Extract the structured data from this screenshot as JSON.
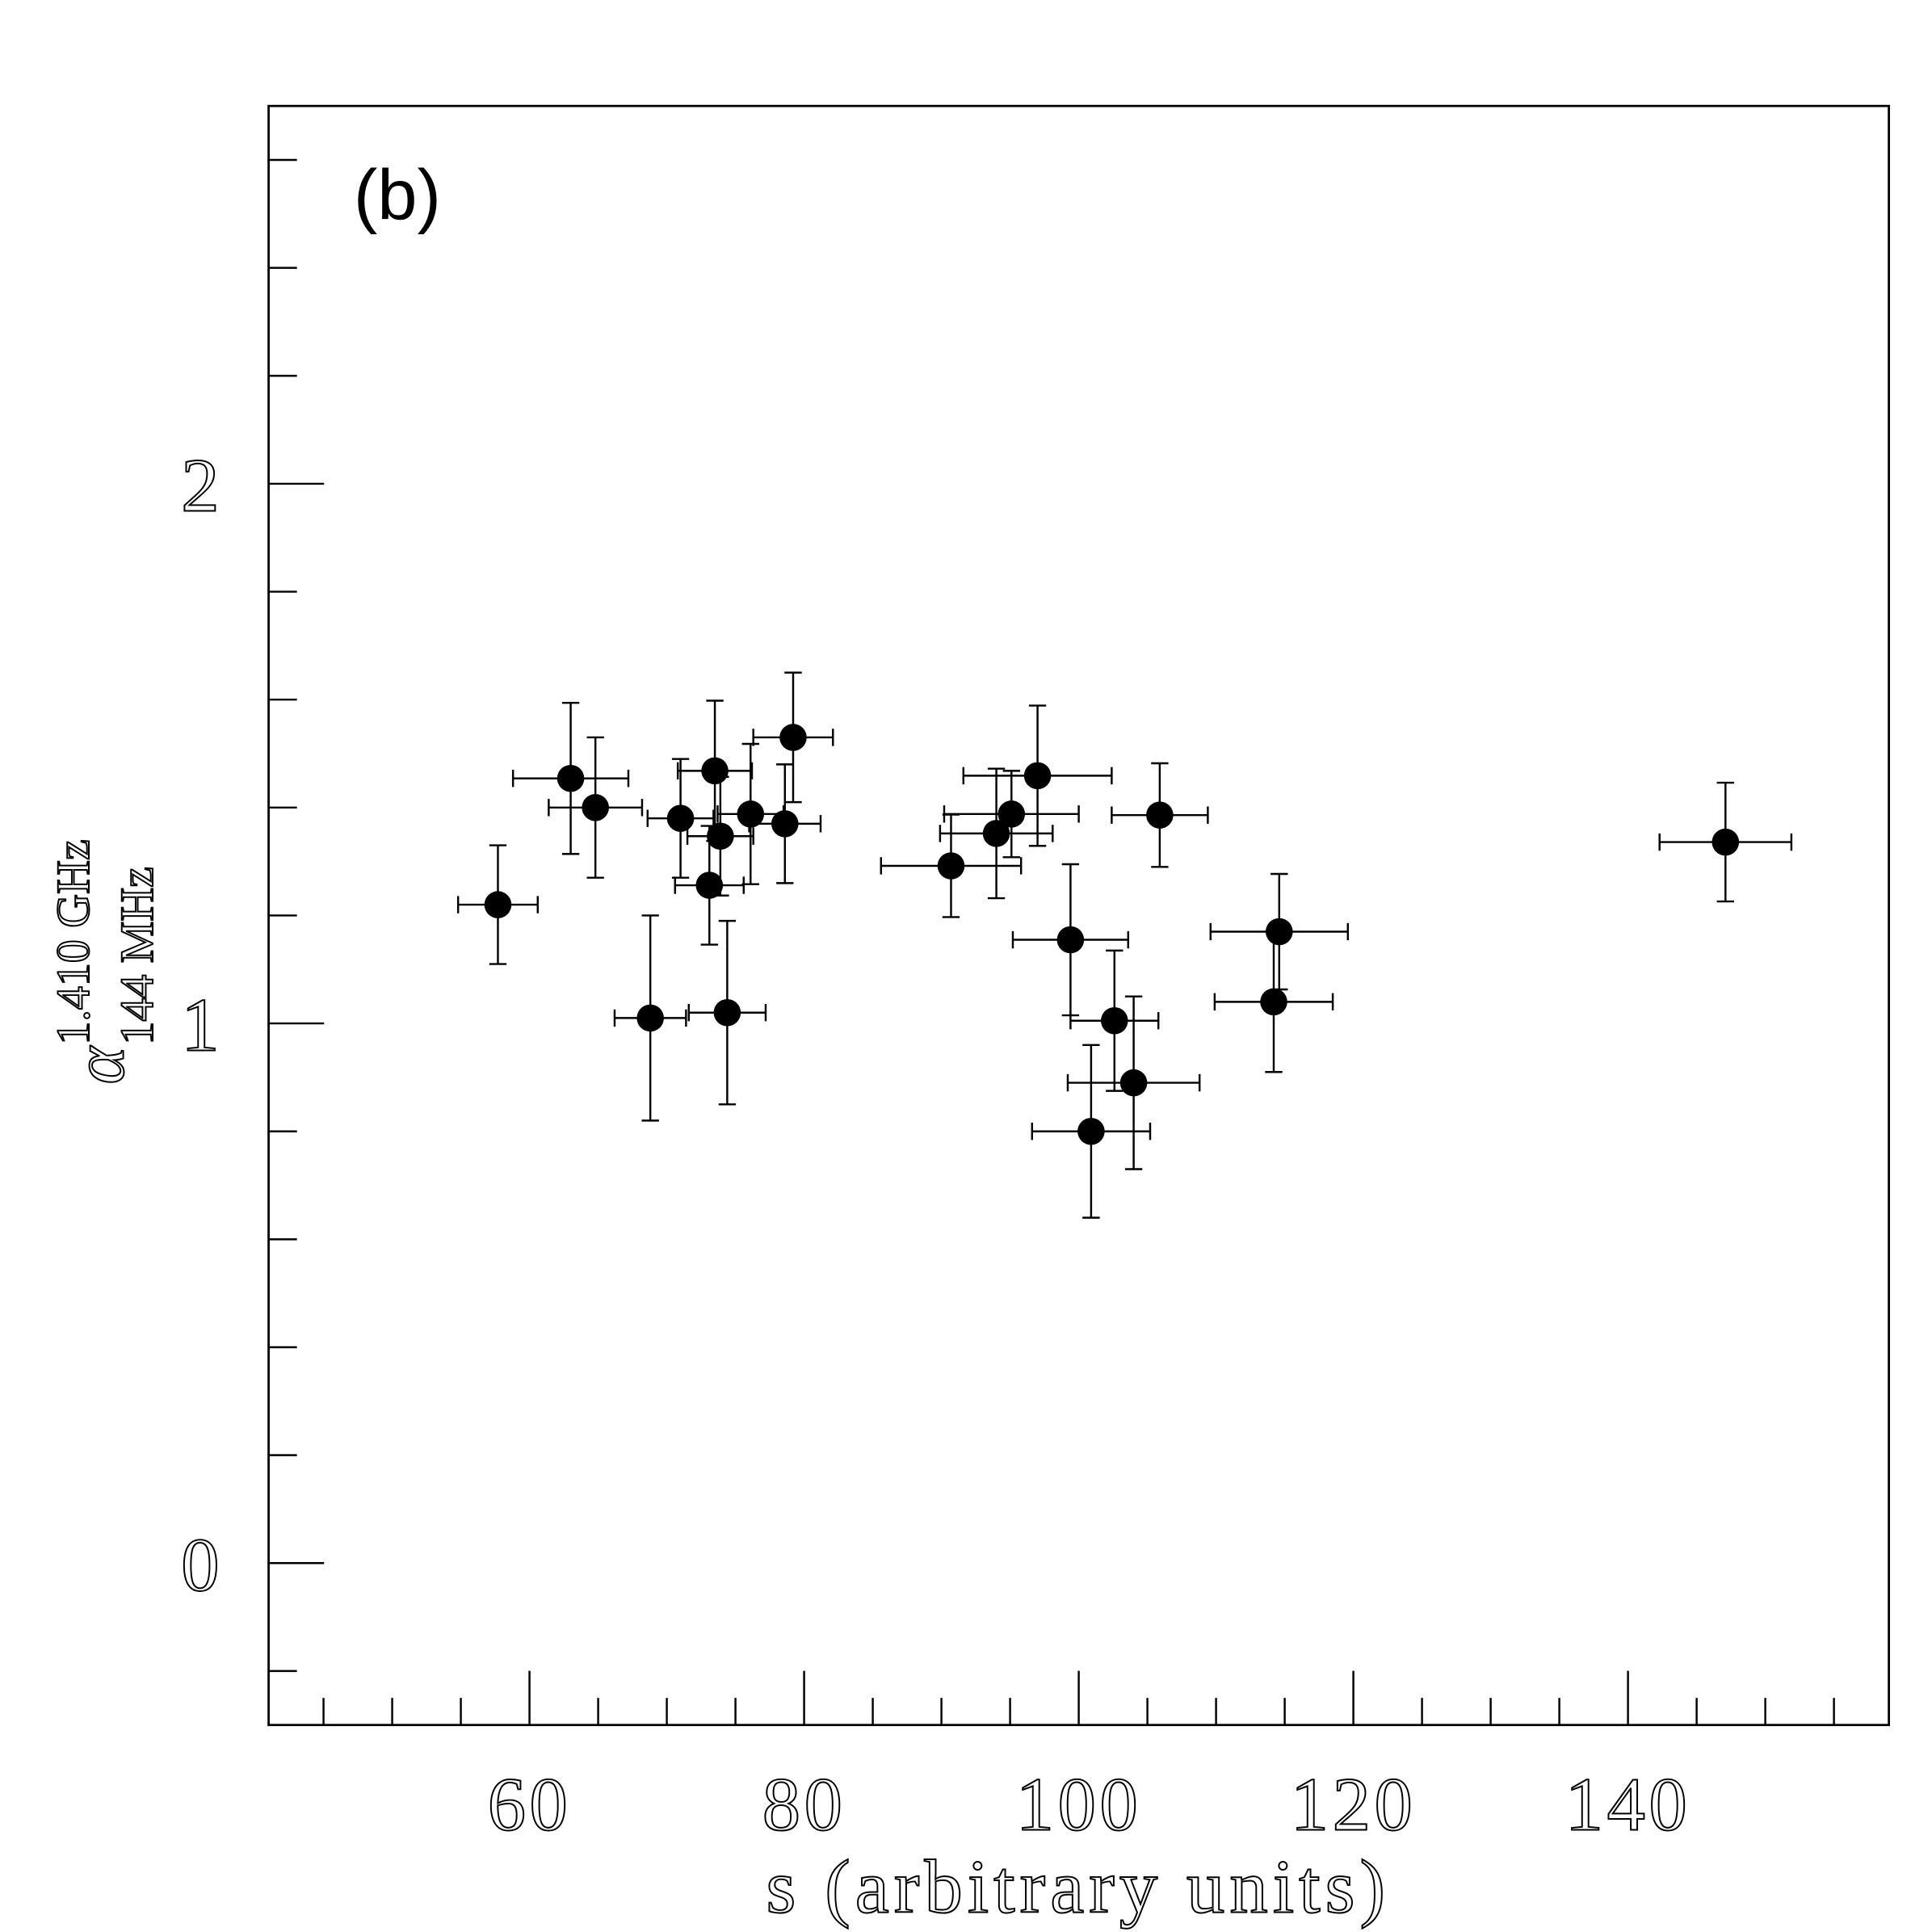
{
  "chart_data": {
    "type": "scatter",
    "annotation": "(b)",
    "xlabel": "s (arbitrary units)",
    "ylabel": {
      "symbol": "α",
      "superscript": "1.410 GHz",
      "subscript": "144 MHz"
    },
    "color": "#000000",
    "xlim": [
      41,
      159
    ],
    "ylim": [
      -0.3,
      2.7
    ],
    "xticks": [
      60,
      80,
      100,
      120,
      140
    ],
    "yticks": [
      0,
      1,
      2
    ],
    "xminorticks": [
      45,
      50,
      55,
      65,
      70,
      75,
      85,
      90,
      95,
      105,
      110,
      115,
      125,
      130,
      135,
      145,
      150,
      155
    ],
    "yminorticks": [
      -0.2,
      0.2,
      0.4,
      0.6,
      0.8,
      1.2,
      1.4,
      1.6,
      1.8,
      2.2,
      2.4,
      2.6
    ],
    "x": [
      57.7,
      63.0,
      64.8,
      68.8,
      71.0,
      73.5,
      73.1,
      73.9,
      74.4,
      76.1,
      78.6,
      79.2,
      90.7,
      94.0,
      95.1,
      97.0,
      105.9,
      99.4,
      102.6,
      104.0,
      100.9,
      114.6,
      114.2,
      147.1
    ],
    "values": [
      1.22,
      1.454,
      1.4,
      1.01,
      1.38,
      1.468,
      1.256,
      1.347,
      1.02,
      1.388,
      1.37,
      1.53,
      1.292,
      1.352,
      1.388,
      1.459,
      1.386,
      1.155,
      1.005,
      0.89,
      0.8,
      1.17,
      1.04,
      1.336
    ],
    "xerr": [
      2.9,
      4.2,
      3.4,
      2.6,
      2.4,
      2.7,
      2.5,
      2.4,
      2.8,
      2.4,
      2.6,
      2.9,
      5.1,
      4.1,
      4.9,
      5.4,
      3.5,
      4.2,
      3.2,
      4.8,
      4.3,
      5.0,
      4.3,
      4.8
    ],
    "yerr": [
      0.11,
      0.14,
      0.13,
      0.19,
      0.11,
      0.13,
      0.11,
      0.11,
      0.17,
      0.13,
      0.11,
      0.12,
      0.095,
      0.12,
      0.08,
      0.13,
      0.096,
      0.14,
      0.13,
      0.16,
      0.16,
      0.107,
      0.13,
      0.11
    ]
  }
}
